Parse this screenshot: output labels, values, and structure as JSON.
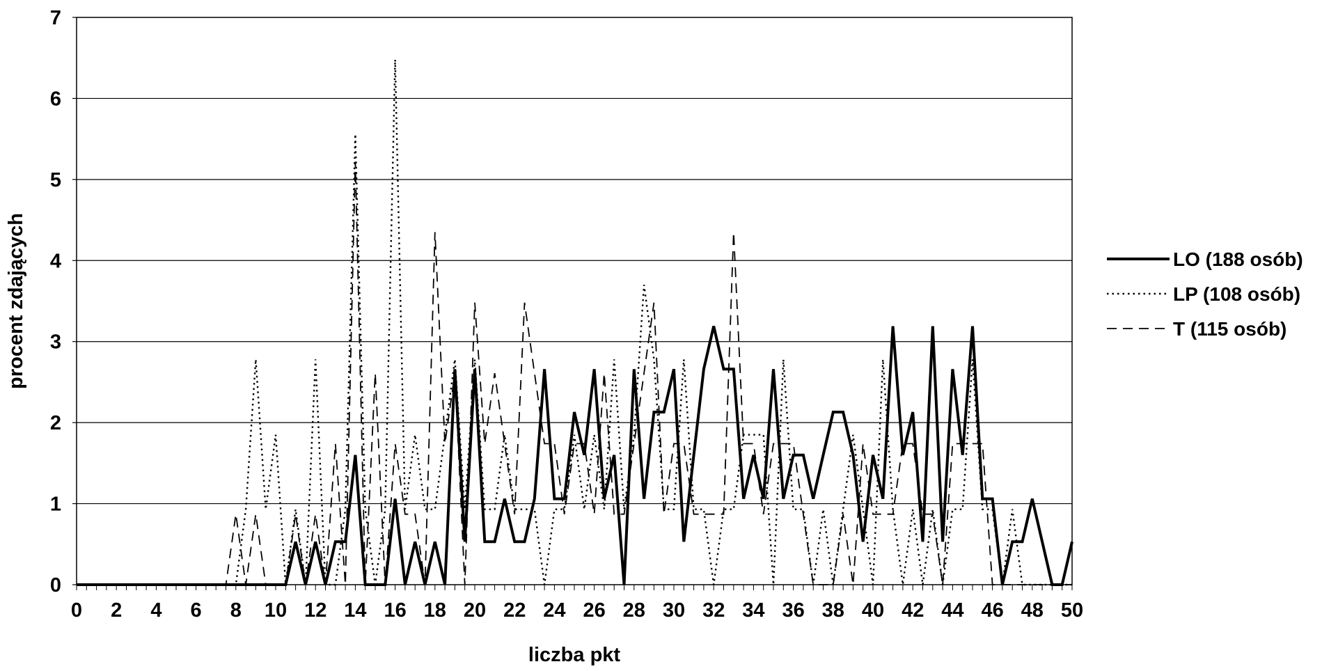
{
  "chart_data": {
    "type": "line",
    "xlabel": "liczba pkt",
    "ylabel": "procent zdających",
    "xlim": [
      0,
      50
    ],
    "ylim": [
      0,
      7
    ],
    "x_ticks": [
      "0",
      "2",
      "4",
      "6",
      "8",
      "10",
      "12",
      "14",
      "16",
      "18",
      "20",
      "22",
      "24",
      "26",
      "28",
      "30",
      "32",
      "34",
      "36",
      "38",
      "40",
      "42",
      "44",
      "46",
      "48",
      "50"
    ],
    "y_ticks": [
      "0",
      "1",
      "2",
      "3",
      "4",
      "5",
      "6",
      "7"
    ],
    "grid": "horizontal",
    "legend_position": "right",
    "series": [
      {
        "name": "LO (188 osób)",
        "style": "solid-thick",
        "color": "#000000",
        "points": [
          [
            0,
            0
          ],
          [
            10.5,
            0
          ],
          [
            11,
            0.53
          ],
          [
            11.5,
            0
          ],
          [
            12,
            0.53
          ],
          [
            12.5,
            0
          ],
          [
            13,
            0.53
          ],
          [
            13.5,
            0.53
          ],
          [
            14,
            1.6
          ],
          [
            14.5,
            0
          ],
          [
            15.5,
            0
          ],
          [
            16,
            1.06
          ],
          [
            16.5,
            0
          ],
          [
            17,
            0.53
          ],
          [
            17.5,
            0
          ],
          [
            18,
            0.53
          ],
          [
            18.5,
            0
          ],
          [
            19,
            2.66
          ],
          [
            19.5,
            0.53
          ],
          [
            20,
            2.66
          ],
          [
            20.5,
            0.53
          ],
          [
            21,
            0.53
          ],
          [
            21.5,
            1.06
          ],
          [
            22,
            0.53
          ],
          [
            22.5,
            0.53
          ],
          [
            23,
            1.06
          ],
          [
            23.5,
            2.66
          ],
          [
            24,
            1.06
          ],
          [
            24.5,
            1.06
          ],
          [
            25,
            2.13
          ],
          [
            25.5,
            1.6
          ],
          [
            26,
            2.66
          ],
          [
            26.5,
            1.06
          ],
          [
            27,
            1.6
          ],
          [
            27.5,
            0
          ],
          [
            28,
            2.66
          ],
          [
            28.5,
            1.06
          ],
          [
            29,
            2.13
          ],
          [
            29.5,
            2.13
          ],
          [
            30,
            2.66
          ],
          [
            30.5,
            0.53
          ],
          [
            31,
            1.6
          ],
          [
            31.5,
            2.66
          ],
          [
            32,
            3.19
          ],
          [
            32.5,
            2.66
          ],
          [
            33,
            2.66
          ],
          [
            33.5,
            1.06
          ],
          [
            34,
            1.6
          ],
          [
            34.5,
            1.06
          ],
          [
            35,
            2.66
          ],
          [
            35.5,
            1.06
          ],
          [
            36,
            1.6
          ],
          [
            36.5,
            1.6
          ],
          [
            37,
            1.06
          ],
          [
            37.5,
            1.6
          ],
          [
            38,
            2.13
          ],
          [
            38.5,
            2.13
          ],
          [
            39,
            1.6
          ],
          [
            39.5,
            0.53
          ],
          [
            40,
            1.6
          ],
          [
            40.5,
            1.06
          ],
          [
            41,
            3.19
          ],
          [
            41.5,
            1.6
          ],
          [
            42,
            2.13
          ],
          [
            42.5,
            0.53
          ],
          [
            43,
            3.19
          ],
          [
            43.5,
            0.53
          ],
          [
            44,
            2.66
          ],
          [
            44.5,
            1.6
          ],
          [
            45,
            3.19
          ],
          [
            45.5,
            1.06
          ],
          [
            46,
            1.06
          ],
          [
            46.5,
            0
          ],
          [
            47,
            0.53
          ],
          [
            47.5,
            0.53
          ],
          [
            48,
            1.06
          ],
          [
            48.5,
            0.53
          ],
          [
            49,
            0
          ],
          [
            49.5,
            0
          ],
          [
            50,
            0.53
          ]
        ]
      },
      {
        "name": "LP (108 osób)",
        "style": "dotted",
        "color": "#000000",
        "points": [
          [
            0,
            0
          ],
          [
            8,
            0
          ],
          [
            8.5,
            0.93
          ],
          [
            9,
            2.78
          ],
          [
            9.5,
            0.93
          ],
          [
            10,
            1.85
          ],
          [
            10.5,
            0
          ],
          [
            11,
            0.93
          ],
          [
            11.5,
            0
          ],
          [
            12,
            2.78
          ],
          [
            12.5,
            0
          ],
          [
            13,
            0
          ],
          [
            13.5,
            0.93
          ],
          [
            14,
            5.56
          ],
          [
            14.5,
            0.93
          ],
          [
            15,
            0
          ],
          [
            15.5,
            0.93
          ],
          [
            16,
            6.48
          ],
          [
            16.5,
            0.93
          ],
          [
            17,
            1.85
          ],
          [
            17.5,
            0.93
          ],
          [
            18,
            0.93
          ],
          [
            18.5,
            1.85
          ],
          [
            19,
            2.78
          ],
          [
            19.5,
            0.93
          ],
          [
            20,
            2.78
          ],
          [
            20.5,
            0.93
          ],
          [
            21,
            0.93
          ],
          [
            21.5,
            1.85
          ],
          [
            22,
            0.93
          ],
          [
            22.5,
            0.93
          ],
          [
            23,
            0.93
          ],
          [
            23.5,
            0
          ],
          [
            24,
            0.93
          ],
          [
            24.5,
            0.93
          ],
          [
            25,
            1.85
          ],
          [
            25.5,
            0.93
          ],
          [
            26,
            1.85
          ],
          [
            26.5,
            0.93
          ],
          [
            27,
            2.78
          ],
          [
            27.5,
            0.93
          ],
          [
            28,
            1.85
          ],
          [
            28.5,
            3.7
          ],
          [
            29,
            2.78
          ],
          [
            29.5,
            0.93
          ],
          [
            30,
            0.93
          ],
          [
            30.5,
            2.78
          ],
          [
            31,
            0.93
          ],
          [
            31.5,
            0.93
          ],
          [
            32,
            0
          ],
          [
            32.5,
            0.93
          ],
          [
            33,
            0.93
          ],
          [
            33.5,
            1.85
          ],
          [
            34,
            1.85
          ],
          [
            34.5,
            1.85
          ],
          [
            35,
            0
          ],
          [
            35.5,
            2.78
          ],
          [
            36,
            0.93
          ],
          [
            36.5,
            0.93
          ],
          [
            37,
            0
          ],
          [
            37.5,
            0.93
          ],
          [
            38,
            0
          ],
          [
            38.5,
            0.93
          ],
          [
            39,
            1.85
          ],
          [
            39.5,
            0.93
          ],
          [
            40,
            0
          ],
          [
            40.5,
            2.78
          ],
          [
            41,
            0.93
          ],
          [
            41.5,
            0
          ],
          [
            42,
            0.93
          ],
          [
            42.5,
            0
          ],
          [
            43,
            0.93
          ],
          [
            43.5,
            0
          ],
          [
            44,
            0.93
          ],
          [
            44.5,
            0.93
          ],
          [
            45,
            2.78
          ],
          [
            45.5,
            0.93
          ],
          [
            46,
            0.93
          ],
          [
            46.5,
            0
          ],
          [
            47,
            0.93
          ],
          [
            47.5,
            0
          ],
          [
            48,
            0
          ],
          [
            50,
            0
          ]
        ]
      },
      {
        "name": "T (115 osób)",
        "style": "dashed",
        "color": "#000000",
        "points": [
          [
            0,
            0
          ],
          [
            7.5,
            0
          ],
          [
            8,
            0.87
          ],
          [
            8.5,
            0
          ],
          [
            9,
            0.87
          ],
          [
            9.5,
            0
          ],
          [
            10.5,
            0
          ],
          [
            11,
            0.87
          ],
          [
            11.5,
            0
          ],
          [
            12,
            0.87
          ],
          [
            12.5,
            0
          ],
          [
            13,
            1.74
          ],
          [
            13.5,
            0
          ],
          [
            14,
            5.22
          ],
          [
            14.5,
            0
          ],
          [
            15,
            2.61
          ],
          [
            15.5,
            0
          ],
          [
            16,
            1.74
          ],
          [
            16.5,
            0.87
          ],
          [
            17,
            0.87
          ],
          [
            17.5,
            0
          ],
          [
            18,
            4.35
          ],
          [
            18.5,
            1.74
          ],
          [
            19,
            2.61
          ],
          [
            19.5,
            0
          ],
          [
            20,
            3.48
          ],
          [
            20.5,
            1.74
          ],
          [
            21,
            2.61
          ],
          [
            21.5,
            1.74
          ],
          [
            22,
            0.87
          ],
          [
            22.5,
            3.48
          ],
          [
            23,
            2.61
          ],
          [
            23.5,
            1.74
          ],
          [
            24,
            1.74
          ],
          [
            24.5,
            0.87
          ],
          [
            25,
            1.74
          ],
          [
            25.5,
            1.74
          ],
          [
            26,
            0.87
          ],
          [
            26.5,
            2.61
          ],
          [
            27,
            0.87
          ],
          [
            27.5,
            0.87
          ],
          [
            28,
            1.74
          ],
          [
            28.5,
            2.61
          ],
          [
            29,
            3.48
          ],
          [
            29.5,
            0.87
          ],
          [
            30,
            1.74
          ],
          [
            30.5,
            1.74
          ],
          [
            31,
            0.87
          ],
          [
            31.5,
            0.87
          ],
          [
            32,
            0.87
          ],
          [
            32.5,
            0.87
          ],
          [
            33,
            4.35
          ],
          [
            33.5,
            1.74
          ],
          [
            34,
            1.74
          ],
          [
            34.5,
            0.87
          ],
          [
            35,
            1.74
          ],
          [
            35.5,
            1.74
          ],
          [
            36,
            1.74
          ],
          [
            36.5,
            0.87
          ],
          [
            37,
            0
          ],
          [
            38,
            0
          ],
          [
            38.5,
            0.87
          ],
          [
            39,
            0
          ],
          [
            39.5,
            1.74
          ],
          [
            40,
            0.87
          ],
          [
            40.5,
            0.87
          ],
          [
            41,
            0.87
          ],
          [
            41.5,
            1.74
          ],
          [
            42,
            1.74
          ],
          [
            42.5,
            0.87
          ],
          [
            43,
            0.87
          ],
          [
            43.5,
            0
          ],
          [
            44,
            1.74
          ],
          [
            44.5,
            1.74
          ],
          [
            45,
            1.74
          ],
          [
            45.5,
            1.74
          ],
          [
            46,
            0
          ],
          [
            50,
            0
          ]
        ]
      }
    ]
  }
}
